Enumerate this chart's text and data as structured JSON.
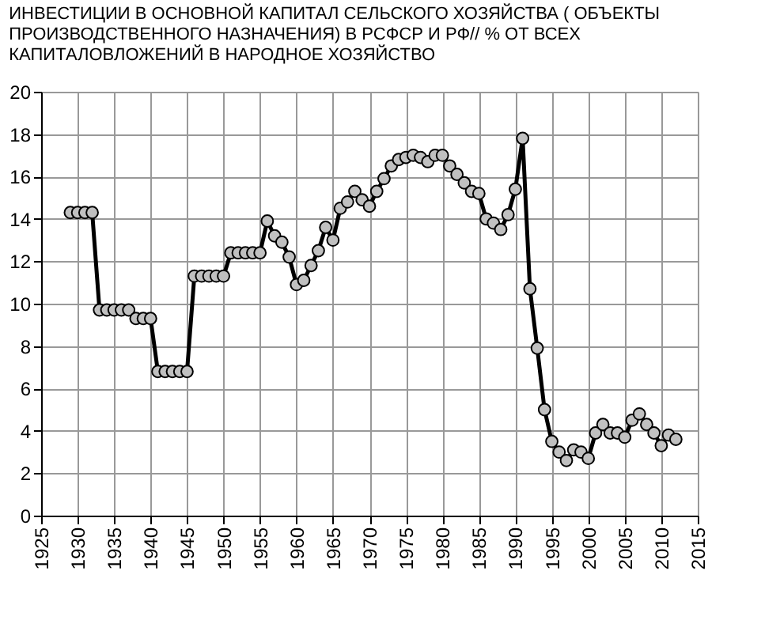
{
  "chart_data": {
    "type": "line",
    "title": " ИНВЕСТИЦИИ В ОСНОВНОЙ КАПИТАЛ СЕЛЬСКОГО ХОЗЯЙСТВА ( ОБЪЕКТЫ\nПРОИЗВОДСТВЕННОГО НАЗНАЧЕНИЯ) В  РСФСР И  РФ// % ОТ ВСЕХ\nКАПИТАЛОВЛОЖЕНИЙ В НАРОДНОЕ ХОЗЯЙСТВО",
    "x": [
      1929,
      1930,
      1931,
      1932,
      1933,
      1934,
      1935,
      1936,
      1937,
      1938,
      1939,
      1940,
      1941,
      1942,
      1943,
      1944,
      1945,
      1946,
      1947,
      1948,
      1949,
      1950,
      1951,
      1952,
      1953,
      1954,
      1955,
      1956,
      1957,
      1958,
      1959,
      1960,
      1961,
      1962,
      1963,
      1964,
      1965,
      1966,
      1967,
      1968,
      1969,
      1970,
      1971,
      1972,
      1973,
      1974,
      1975,
      1976,
      1977,
      1978,
      1979,
      1980,
      1981,
      1982,
      1983,
      1984,
      1985,
      1986,
      1987,
      1988,
      1989,
      1990,
      1991,
      1992,
      1993,
      1994,
      1995,
      1996,
      1997,
      1998,
      1999,
      2000,
      2001,
      2002,
      2003,
      2004,
      2005,
      2006,
      2007,
      2008,
      2009,
      2010,
      2011,
      2012
    ],
    "series": [
      {
        "color": "#000000",
        "values": [
          14.3,
          14.3,
          14.3,
          14.3,
          9.7,
          9.7,
          9.7,
          9.7,
          9.7,
          9.3,
          9.3,
          9.3,
          6.8,
          6.8,
          6.8,
          6.8,
          6.8,
          11.3,
          11.3,
          11.3,
          11.3,
          11.3,
          12.4,
          12.4,
          12.4,
          12.4,
          12.4,
          13.9,
          13.2,
          12.9,
          12.2,
          10.9,
          11.1,
          11.8,
          12.5,
          13.6,
          13.0,
          14.5,
          14.8,
          15.3,
          14.9,
          14.6,
          15.3,
          15.9,
          16.5,
          16.8,
          16.9,
          17.0,
          16.9,
          16.7,
          17.0,
          17.0,
          16.5,
          16.1,
          15.7,
          15.3,
          15.2,
          14.0,
          13.8,
          13.5,
          14.2,
          15.4,
          17.8,
          10.7,
          7.9,
          5.0,
          3.5,
          3.0,
          2.6,
          3.1,
          3.0,
          2.7,
          3.9,
          4.3,
          3.9,
          3.9,
          3.7,
          4.5,
          4.8,
          4.3,
          3.9,
          3.3,
          3.8,
          3.6
        ]
      }
    ],
    "xlim": [
      1925,
      2015
    ],
    "xticks": [
      1925,
      1930,
      1935,
      1940,
      1945,
      1950,
      1955,
      1960,
      1965,
      1970,
      1975,
      1980,
      1985,
      1990,
      1995,
      2000,
      2005,
      2010,
      2015
    ],
    "ylim": [
      0,
      20
    ],
    "yticks": [
      0,
      2,
      4,
      6,
      8,
      10,
      12,
      14,
      16,
      18,
      20
    ],
    "grid": true,
    "marker": "circle",
    "line_style": "solid"
  }
}
